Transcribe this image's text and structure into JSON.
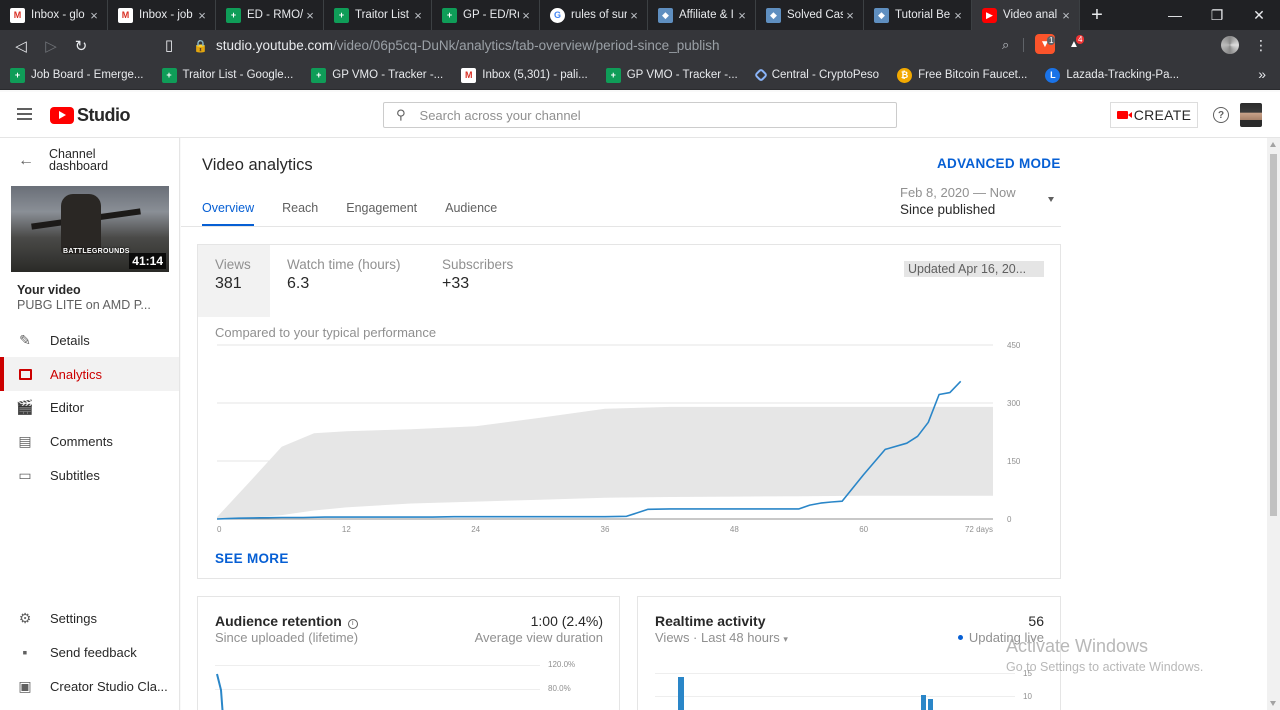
{
  "browser": {
    "tabs": [
      {
        "title": "Inbox - glo",
        "icon": "gmail-icon",
        "icon_glyph": "M",
        "kind": "gmail"
      },
      {
        "title": "Inbox - job",
        "icon": "gmail-icon",
        "icon_glyph": "M",
        "kind": "gmail"
      },
      {
        "title": "ED - RMO/",
        "icon": "sheets-icon",
        "icon_glyph": "+",
        "kind": "sheet"
      },
      {
        "title": "Traitor List",
        "icon": "sheets-icon",
        "icon_glyph": "+",
        "kind": "sheet"
      },
      {
        "title": "GP - ED/Ru",
        "icon": "sheets-icon",
        "icon_glyph": "+",
        "kind": "sheet"
      },
      {
        "title": "rules of sur",
        "icon": "google-icon",
        "icon_glyph": "G",
        "kind": "google"
      },
      {
        "title": "Affiliate & I",
        "icon": "cube-icon",
        "icon_glyph": "◆",
        "kind": "cube"
      },
      {
        "title": "Solved Cas",
        "icon": "cube-icon",
        "icon_glyph": "◆",
        "kind": "cube"
      },
      {
        "title": "Tutorial Be",
        "icon": "cube-icon",
        "icon_glyph": "◆",
        "kind": "cube"
      },
      {
        "title": "Video anal",
        "icon": "youtube-icon",
        "icon_glyph": "▶",
        "kind": "yt",
        "active": true
      }
    ],
    "url_host": "studio.youtube.com",
    "url_path": "/video/06p5cq-DuNk/analytics/tab-overview/period-since_publish",
    "ext_badge_1": "1",
    "ext_badge_2": "4",
    "bookmarks": [
      {
        "title": "Job Board - Emerge...",
        "icon": "sheets-icon",
        "glyph": "+",
        "kind": "sheet"
      },
      {
        "title": "Traitor List - Google...",
        "icon": "sheets-icon",
        "glyph": "+",
        "kind": "sheet"
      },
      {
        "title": "GP VMO - Tracker -...",
        "icon": "sheets-icon",
        "glyph": "+",
        "kind": "sheet"
      },
      {
        "title": "Inbox (5,301) - pali...",
        "icon": "gmail-icon",
        "glyph": "M",
        "kind": "gmail"
      },
      {
        "title": "GP VMO - Tracker -...",
        "icon": "sheets-icon",
        "glyph": "+",
        "kind": "sheet"
      },
      {
        "title": "Central - CryptoPeso",
        "icon": "central-icon",
        "glyph": "",
        "kind": "central"
      },
      {
        "title": "Free Bitcoin Faucet...",
        "icon": "bitcoin-icon",
        "glyph": "₿",
        "kind": "btc"
      },
      {
        "title": "Lazada-Tracking-Pa...",
        "icon": "lazada-icon",
        "glyph": "L",
        "kind": "laz"
      }
    ]
  },
  "header": {
    "logo_text": "Studio",
    "search_placeholder": "Search across your channel",
    "create_label": "CREATE"
  },
  "sidebar": {
    "back_label": "Channel dashboard",
    "duration": "41:14",
    "thumb_brand": "BATTLEGROUNDS",
    "your_video_label": "Your video",
    "video_title": "PUBG LITE on AMD P...",
    "items": [
      {
        "label": "Details",
        "icon": "pencil-icon",
        "glyph": "✎"
      },
      {
        "label": "Analytics",
        "icon": "analytics-icon",
        "glyph": "",
        "active": true
      },
      {
        "label": "Editor",
        "icon": "clapper-icon",
        "glyph": "🎬"
      },
      {
        "label": "Comments",
        "icon": "comment-icon",
        "glyph": "▤"
      },
      {
        "label": "Subtitles",
        "icon": "subtitles-icon",
        "glyph": "▭"
      }
    ],
    "bottom_items": [
      {
        "label": "Settings",
        "icon": "gear-icon",
        "glyph": "⚙"
      },
      {
        "label": "Send feedback",
        "icon": "feedback-icon",
        "glyph": "▪"
      },
      {
        "label": "Creator Studio Cla...",
        "icon": "creator-studio-icon",
        "glyph": "▣"
      }
    ]
  },
  "main": {
    "page_title": "Video analytics",
    "advanced_mode": "ADVANCED MODE",
    "tabs": [
      "Overview",
      "Reach",
      "Engagement",
      "Audience"
    ],
    "period_range": "Feb 8, 2020 — Now",
    "period_name": "Since published",
    "metrics": [
      {
        "label": "Views",
        "value": "381"
      },
      {
        "label": "Watch time (hours)",
        "value": "6.3"
      },
      {
        "label": "Subscribers",
        "value": "+33"
      }
    ],
    "updated": "Updated Apr 16, 20...",
    "compared": "Compared to your typical performance",
    "see_more": "SEE MORE",
    "retention": {
      "title": "Audience retention",
      "subtitle": "Since uploaded (lifetime)",
      "value": "1:00 (2.4%)",
      "value_label": "Average view duration",
      "ticks": [
        "120.0%",
        "80.0%"
      ]
    },
    "realtime": {
      "title": "Realtime activity",
      "subtitle": "Views · Last 48 hours",
      "value": "56",
      "status": "Updating live",
      "ticks": [
        "15",
        "10"
      ]
    }
  },
  "watermark": {
    "line1": "Activate Windows",
    "line2": "Go to Settings to activate Windows."
  },
  "colors": {
    "accent": "#065fd4",
    "brand_red": "#ff0000",
    "series": "#2a86c8",
    "band": "#e6e6e6"
  },
  "chart_data": {
    "type": "line",
    "title": "",
    "xlabel": "",
    "ylabel": "",
    "xlim": [
      0,
      72
    ],
    "ylim": [
      0,
      450
    ],
    "x_ticks": [
      0,
      12,
      24,
      36,
      48,
      60
    ],
    "x_tick_last_label": "72 days",
    "y_ticks": [
      0,
      150,
      300,
      450
    ],
    "grid": true,
    "series": [
      {
        "x": [
          0,
          1,
          2,
          4,
          6,
          8,
          10,
          12,
          14,
          16,
          18,
          20,
          22,
          24,
          26,
          28,
          30,
          32,
          34,
          36,
          38,
          40,
          42,
          44,
          46,
          48,
          50,
          52,
          54,
          55,
          56,
          57,
          58,
          60,
          62,
          64,
          65,
          66,
          67,
          68,
          69
        ],
        "y": [
          0,
          1,
          2,
          3,
          4,
          4,
          5,
          5,
          5,
          5,
          5,
          5,
          6,
          6,
          6,
          6,
          6,
          6,
          6,
          6,
          7,
          25,
          26,
          26,
          26,
          26,
          26,
          26,
          26,
          36,
          41,
          44,
          46,
          115,
          180,
          196,
          214,
          250,
          322,
          327,
          356
        ]
      }
    ],
    "typical_band": {
      "x": [
        0,
        3,
        6,
        9,
        12,
        18,
        24,
        30,
        36,
        42,
        48,
        54,
        60,
        66,
        72
      ],
      "upper": [
        5,
        95,
        187,
        222,
        227,
        232,
        240,
        262,
        285,
        290,
        290,
        290,
        290,
        290,
        290
      ],
      "lower": [
        0,
        3,
        10,
        22,
        30,
        40,
        45,
        50,
        55,
        57,
        58,
        59,
        60,
        60,
        60
      ]
    }
  }
}
